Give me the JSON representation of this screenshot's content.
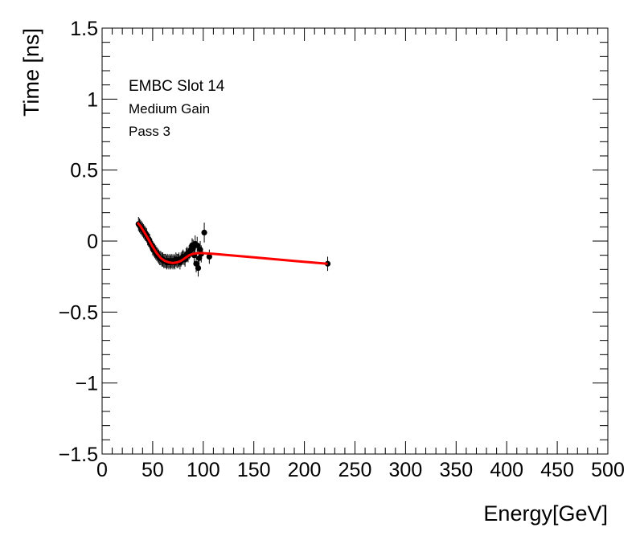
{
  "chart_data": {
    "type": "scatter",
    "xlabel": "Energy[GeV]",
    "ylabel": "Time [ns]",
    "xlim": [
      0,
      500
    ],
    "ylim": [
      -1.5,
      1.5
    ],
    "x_ticks": [
      0,
      50,
      100,
      150,
      200,
      250,
      300,
      350,
      400,
      450,
      500
    ],
    "y_ticks": [
      -1.5,
      -1,
      -0.5,
      0,
      0.5,
      1,
      1.5
    ],
    "y_tick_labels": [
      "−1.5",
      "−1",
      "−0.5",
      "0",
      "0.5",
      "1",
      "1.5"
    ],
    "annotations": [
      "EMBC Slot 14",
      "Medium Gain",
      "Pass 3"
    ],
    "grid": false,
    "series": [
      {
        "name": "data",
        "marker_color": "#000000",
        "points": [
          {
            "x": 36,
            "y": 0.12,
            "err": 0.05
          },
          {
            "x": 37,
            "y": 0.11,
            "err": 0.05
          },
          {
            "x": 38,
            "y": 0.1,
            "err": 0.05
          },
          {
            "x": 39,
            "y": 0.09,
            "err": 0.05
          },
          {
            "x": 40,
            "y": 0.08,
            "err": 0.05
          },
          {
            "x": 41,
            "y": 0.07,
            "err": 0.05
          },
          {
            "x": 42,
            "y": 0.06,
            "err": 0.05
          },
          {
            "x": 43,
            "y": 0.05,
            "err": 0.05
          },
          {
            "x": 44,
            "y": 0.04,
            "err": 0.05
          },
          {
            "x": 45,
            "y": 0.02,
            "err": 0.05
          },
          {
            "x": 46,
            "y": 0.01,
            "err": 0.05
          },
          {
            "x": 47,
            "y": 0.0,
            "err": 0.05
          },
          {
            "x": 48,
            "y": -0.02,
            "err": 0.05
          },
          {
            "x": 49,
            "y": -0.03,
            "err": 0.05
          },
          {
            "x": 50,
            "y": -0.05,
            "err": 0.05
          },
          {
            "x": 51,
            "y": -0.06,
            "err": 0.05
          },
          {
            "x": 52,
            "y": -0.07,
            "err": 0.05
          },
          {
            "x": 53,
            "y": -0.08,
            "err": 0.05
          },
          {
            "x": 54,
            "y": -0.09,
            "err": 0.05
          },
          {
            "x": 55,
            "y": -0.1,
            "err": 0.05
          },
          {
            "x": 56,
            "y": -0.11,
            "err": 0.05
          },
          {
            "x": 57,
            "y": -0.12,
            "err": 0.05
          },
          {
            "x": 58,
            "y": -0.12,
            "err": 0.05
          },
          {
            "x": 59,
            "y": -0.13,
            "err": 0.05
          },
          {
            "x": 60,
            "y": -0.13,
            "err": 0.05
          },
          {
            "x": 61,
            "y": -0.14,
            "err": 0.05
          },
          {
            "x": 62,
            "y": -0.14,
            "err": 0.05
          },
          {
            "x": 63,
            "y": -0.14,
            "err": 0.05
          },
          {
            "x": 64,
            "y": -0.15,
            "err": 0.05
          },
          {
            "x": 65,
            "y": -0.14,
            "err": 0.05
          },
          {
            "x": 66,
            "y": -0.15,
            "err": 0.05
          },
          {
            "x": 67,
            "y": -0.14,
            "err": 0.05
          },
          {
            "x": 68,
            "y": -0.15,
            "err": 0.05
          },
          {
            "x": 69,
            "y": -0.14,
            "err": 0.05
          },
          {
            "x": 70,
            "y": -0.15,
            "err": 0.05
          },
          {
            "x": 71,
            "y": -0.14,
            "err": 0.05
          },
          {
            "x": 72,
            "y": -0.15,
            "err": 0.05
          },
          {
            "x": 73,
            "y": -0.13,
            "err": 0.05
          },
          {
            "x": 74,
            "y": -0.14,
            "err": 0.05
          },
          {
            "x": 75,
            "y": -0.14,
            "err": 0.05
          },
          {
            "x": 76,
            "y": -0.13,
            "err": 0.05
          },
          {
            "x": 77,
            "y": -0.15,
            "err": 0.05
          },
          {
            "x": 78,
            "y": -0.13,
            "err": 0.05
          },
          {
            "x": 79,
            "y": -0.12,
            "err": 0.05
          },
          {
            "x": 80,
            "y": -0.11,
            "err": 0.05
          },
          {
            "x": 81,
            "y": -0.12,
            "err": 0.05
          },
          {
            "x": 82,
            "y": -0.13,
            "err": 0.05
          },
          {
            "x": 83,
            "y": -0.1,
            "err": 0.05
          },
          {
            "x": 84,
            "y": -0.09,
            "err": 0.05
          },
          {
            "x": 85,
            "y": -0.1,
            "err": 0.05
          },
          {
            "x": 86,
            "y": -0.08,
            "err": 0.05
          },
          {
            "x": 87,
            "y": -0.07,
            "err": 0.05
          },
          {
            "x": 88,
            "y": -0.06,
            "err": 0.05
          },
          {
            "x": 89,
            "y": -0.03,
            "err": 0.05
          },
          {
            "x": 90,
            "y": -0.05,
            "err": 0.06
          },
          {
            "x": 91,
            "y": -0.1,
            "err": 0.06
          },
          {
            "x": 92,
            "y": -0.02,
            "err": 0.06
          },
          {
            "x": 93,
            "y": -0.16,
            "err": 0.06
          },
          {
            "x": 94,
            "y": -0.03,
            "err": 0.06
          },
          {
            "x": 95,
            "y": -0.19,
            "err": 0.06
          },
          {
            "x": 96,
            "y": -0.12,
            "err": 0.06
          },
          {
            "x": 97,
            "y": -0.06,
            "err": 0.06
          },
          {
            "x": 98,
            "y": -0.09,
            "err": 0.06
          },
          {
            "x": 101,
            "y": 0.06,
            "err": 0.07
          },
          {
            "x": 106,
            "y": -0.11,
            "err": 0.05
          },
          {
            "x": 223,
            "y": -0.16,
            "err": 0.05
          }
        ]
      },
      {
        "name": "fit",
        "line_color": "#ff0000",
        "points": [
          {
            "x": 35,
            "y": 0.13
          },
          {
            "x": 38,
            "y": 0.105
          },
          {
            "x": 42,
            "y": 0.06
          },
          {
            "x": 46,
            "y": 0.01
          },
          {
            "x": 50,
            "y": -0.04
          },
          {
            "x": 54,
            "y": -0.085
          },
          {
            "x": 58,
            "y": -0.12
          },
          {
            "x": 62,
            "y": -0.14
          },
          {
            "x": 66,
            "y": -0.15
          },
          {
            "x": 70,
            "y": -0.155
          },
          {
            "x": 74,
            "y": -0.15
          },
          {
            "x": 78,
            "y": -0.14
          },
          {
            "x": 82,
            "y": -0.12
          },
          {
            "x": 86,
            "y": -0.1
          },
          {
            "x": 90,
            "y": -0.09
          },
          {
            "x": 95,
            "y": -0.085
          },
          {
            "x": 100,
            "y": -0.085
          },
          {
            "x": 110,
            "y": -0.09
          },
          {
            "x": 150,
            "y": -0.115
          },
          {
            "x": 190,
            "y": -0.14
          },
          {
            "x": 223,
            "y": -0.16
          }
        ]
      }
    ]
  }
}
